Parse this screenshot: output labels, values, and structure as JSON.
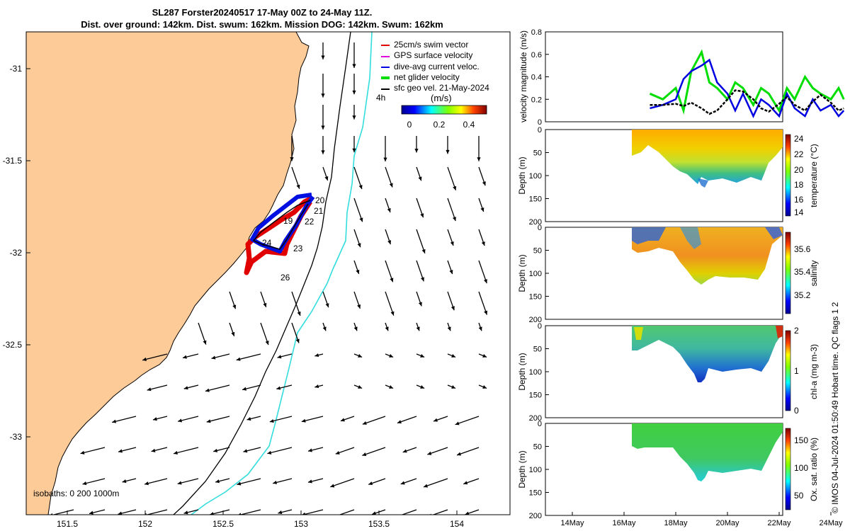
{
  "header": {
    "title_line1": "SL287 Forster20240517 17-May 00Z to 24-May 11Z.",
    "title_line2": "Dist. over ground: 142km. Dist. swum: 162km. Mission DOG: 142km. Swum: 162km"
  },
  "map": {
    "x_ticks": [
      "151.5",
      "152",
      "152.5",
      "153",
      "153.5",
      "154"
    ],
    "y_ticks": [
      "-31",
      "-31.5",
      "-32",
      "-32.5",
      "-33"
    ],
    "legend": {
      "items": [
        "25cm/s swim vector",
        "GPS surface velocity",
        "dive-avg current veloc.",
        "net glider velocity",
        "sfc geo vel. 21-May-2024"
      ],
      "colors": [
        "#e00000",
        "#e000e0",
        "#0000e0",
        "#00dd00",
        "#000000"
      ],
      "scale_label": "4h"
    },
    "colorbar": {
      "unit": "(m/s)",
      "ticks": [
        "0",
        "0.2",
        "0.4"
      ]
    },
    "day_labels": [
      "20",
      "21",
      "19",
      "22",
      "24",
      "23",
      "26"
    ],
    "isobath_label": "isobaths: 0   200  1000m"
  },
  "chart_data": [
    {
      "type": "line",
      "ylabel": "velocity magnitude (m/s)",
      "ylim": [
        0,
        0.8
      ],
      "y_ticks": [
        "0",
        "0.2",
        "0.4",
        "0.6",
        "0.8"
      ],
      "x_days": [
        17.0,
        17.5,
        18.0,
        18.3,
        18.6,
        19.0,
        19.3,
        19.6,
        20.0,
        20.3,
        20.6,
        21.0,
        21.3,
        21.6,
        22.0,
        22.3,
        22.6,
        23.0,
        23.3,
        23.6,
        24.0,
        24.3,
        24.5
      ],
      "series": [
        {
          "name": "net glider velocity",
          "color": "#00dd00",
          "values": [
            0.25,
            0.2,
            0.3,
            0.1,
            0.45,
            0.62,
            0.35,
            0.3,
            0.2,
            0.35,
            0.3,
            0.15,
            0.3,
            0.25,
            0.1,
            0.3,
            0.2,
            0.4,
            0.3,
            0.25,
            0.2,
            0.3,
            0.2
          ]
        },
        {
          "name": "dive-avg current veloc.",
          "color": "#0000e0",
          "values": [
            0.12,
            0.15,
            0.2,
            0.38,
            0.45,
            0.5,
            0.55,
            0.35,
            0.25,
            0.1,
            0.25,
            0.05,
            0.2,
            0.15,
            0.05,
            0.25,
            0.12,
            0.05,
            0.2,
            0.1,
            0.15,
            0.05,
            0.1
          ]
        },
        {
          "name": "sfc geo vel.",
          "color": "#000000",
          "values": [
            0.15,
            0.15,
            0.16,
            0.14,
            0.17,
            0.12,
            0.07,
            0.1,
            0.2,
            0.28,
            0.27,
            0.2,
            0.12,
            0.09,
            0.16,
            0.22,
            0.15,
            0.1,
            0.18,
            0.24,
            0.17,
            0.1,
            0.12
          ]
        }
      ]
    },
    {
      "type": "heatmap",
      "cbar_label": "temperature (°C)",
      "cbar_ticks": [
        "24",
        "22",
        "20",
        "18",
        "16",
        "14"
      ]
    },
    {
      "type": "heatmap",
      "cbar_label": "salinity",
      "cbar_ticks": [
        "35.6",
        "35.4",
        "35.2"
      ]
    },
    {
      "type": "heatmap",
      "cbar_label": "chl-a (mg m-3)",
      "cbar_ticks": [
        "2",
        "1",
        "0"
      ]
    },
    {
      "type": "heatmap",
      "cbar_label": "Ox. sat. ratio (%)",
      "cbar_ticks": [
        "150",
        "100",
        "50"
      ]
    }
  ],
  "panels": {
    "depth_label": "Depth (m)",
    "depth_ticks": [
      "0",
      "50",
      "100",
      "150",
      "200"
    ],
    "x_ticks": [
      "14May",
      "16May",
      "18May",
      "20May",
      "22May",
      "24May"
    ]
  },
  "credit": "© IMOS 04-Jul-2024 01:50:49 Hobart time. QC flags 1  2"
}
